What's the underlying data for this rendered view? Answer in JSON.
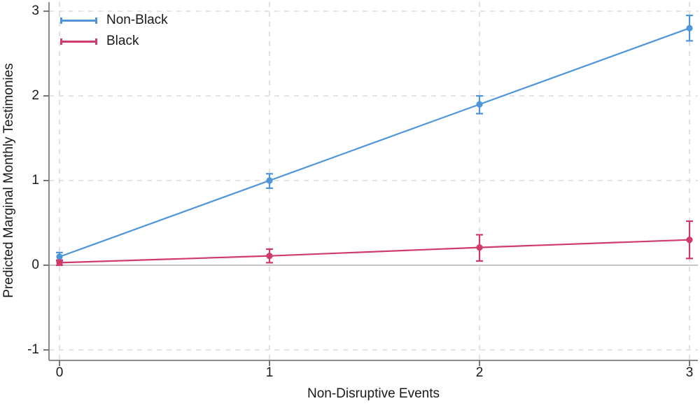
{
  "chart_data": {
    "type": "line",
    "title": "",
    "xlabel": "Non-Disruptive Events",
    "ylabel": "Predicted Marginal Monthly Testimonies",
    "x_ticks": [
      0,
      1,
      2,
      3
    ],
    "y_ticks": [
      3,
      2,
      1,
      0,
      -1
    ],
    "xlim": [
      -0.05,
      3.05
    ],
    "ylim": [
      -1.15,
      3.1
    ],
    "grid": "dashed",
    "zero_reference_line": true,
    "legend_position": "top-left-inside",
    "series": [
      {
        "name": "Non-Black",
        "color": "#4f95d9",
        "x": [
          0,
          1,
          2,
          3
        ],
        "y": [
          0.1,
          1.0,
          1.9,
          2.8
        ],
        "ci_low": [
          0.05,
          0.91,
          1.79,
          2.65
        ],
        "ci_high": [
          0.15,
          1.08,
          2.0,
          2.95
        ]
      },
      {
        "name": "Black",
        "color": "#d13b69",
        "x": [
          0,
          1,
          2,
          3
        ],
        "y": [
          0.03,
          0.11,
          0.21,
          0.3
        ],
        "ci_low": [
          0.0,
          0.03,
          0.05,
          0.08
        ],
        "ci_high": [
          0.06,
          0.19,
          0.36,
          0.52
        ]
      }
    ]
  },
  "colors": {
    "axis": "#8c8c8c",
    "tick": "#777777",
    "grid": "#d9dce0",
    "zero_line": "#c6c6c6",
    "text": "#1a1a1a",
    "background": "#ffffff"
  }
}
